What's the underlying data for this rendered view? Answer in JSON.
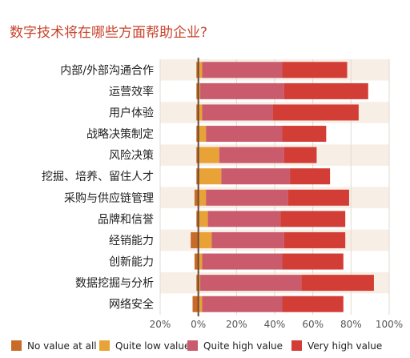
{
  "chart_data": {
    "type": "bar",
    "orientation": "horizontal",
    "stacked": true,
    "title": "数字技术将在哪些方面帮助企业?",
    "categories": [
      "内部/外部沟通合作",
      "运营效率",
      "用户体验",
      "战略决策制定",
      "风险决策",
      "挖掘、培养、留住人才",
      "采购与供应链管理",
      "品牌和信誉",
      "经销能力",
      "创新能力",
      "数据挖掘与分析",
      "网络安全"
    ],
    "series": [
      {
        "name": "No value at all",
        "color": "#c86a28",
        "values": [
          -1,
          -1,
          -1,
          -1,
          -1,
          -1,
          -2,
          -1,
          -4,
          -2,
          -1,
          -3
        ]
      },
      {
        "name": "Quite low value",
        "color": "#e8a236",
        "values": [
          2,
          1,
          2,
          4,
          11,
          12,
          4,
          5,
          7,
          2,
          1,
          2
        ]
      },
      {
        "name": "Quite high value",
        "color": "#c95b6d",
        "values": [
          42,
          44,
          37,
          40,
          34,
          36,
          43,
          38,
          38,
          42,
          53,
          42
        ]
      },
      {
        "name": "Very high value",
        "color": "#d23d35",
        "values": [
          34,
          44,
          45,
          23,
          17,
          21,
          32,
          34,
          32,
          32,
          38,
          32
        ]
      }
    ],
    "xlim": [
      -20,
      100
    ],
    "xticks": [
      "20%",
      "0%",
      "20%",
      "40%",
      "60%",
      "80%",
      "100%"
    ],
    "grid": true,
    "legend": "bottom",
    "colors": {
      "title": "#c8442d",
      "row_band": "#f7efe6",
      "grid": "#e2d9cf",
      "zero_line": "#6b4a3a"
    }
  }
}
